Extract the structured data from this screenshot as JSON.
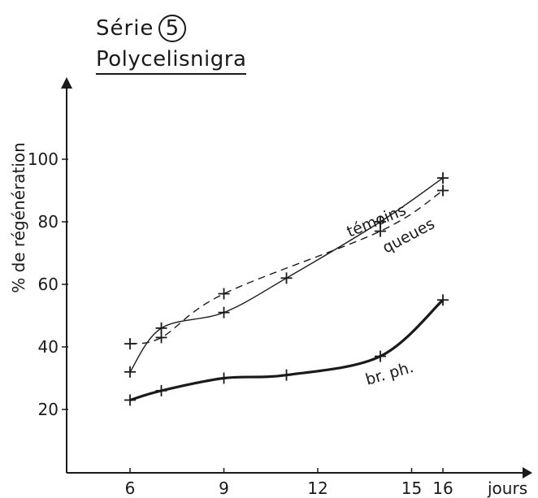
{
  "title_prefix": "Série",
  "title_number": "5",
  "subtitle": "Polycelisnigra",
  "chart_data": {
    "type": "line",
    "xlabel": "jours",
    "ylabel": "% de régénération",
    "xlim": [
      4,
      24
    ],
    "ylim": [
      0,
      120
    ],
    "x_ticks": [
      6,
      9,
      12,
      15,
      16
    ],
    "y_ticks": [
      20,
      40,
      60,
      80,
      100
    ],
    "grid": false,
    "series": [
      {
        "name": "témoins",
        "style": "solid-thin",
        "x": [
          6,
          7,
          9,
          11,
          14,
          16
        ],
        "y": [
          32,
          46,
          51,
          62,
          80,
          94
        ]
      },
      {
        "name": "queues",
        "style": "dashed",
        "x": [
          6,
          7,
          9,
          14,
          16
        ],
        "y": [
          41,
          43,
          57,
          77,
          90
        ]
      },
      {
        "name": "br. ph.",
        "style": "solid-thick",
        "x": [
          6,
          7,
          9,
          11,
          14,
          16
        ],
        "y": [
          23,
          26,
          30,
          31,
          37,
          55
        ]
      }
    ]
  }
}
